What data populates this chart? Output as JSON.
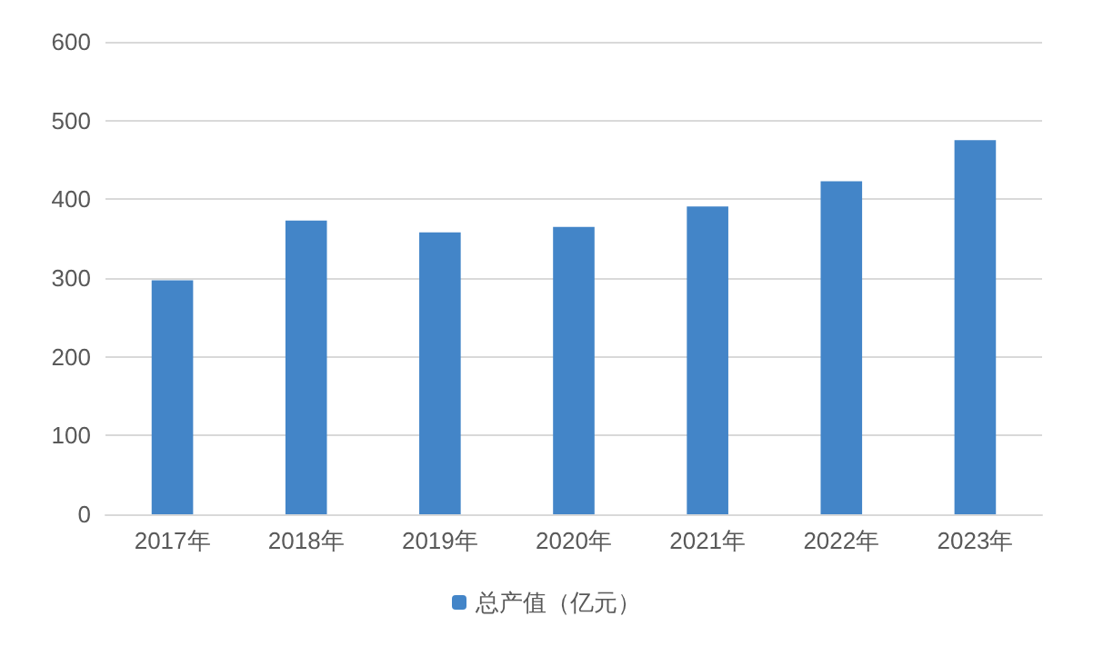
{
  "chart_data": {
    "type": "bar",
    "categories": [
      "2017年",
      "2018年",
      "2019年",
      "2020年",
      "2021年",
      "2022年",
      "2023年"
    ],
    "series": [
      {
        "name": "总产值（亿元）",
        "color": "#4385c8",
        "values": [
          297,
          373,
          358,
          365,
          391,
          423,
          475
        ]
      }
    ],
    "ylim": [
      0,
      600
    ],
    "yticks": [
      0,
      100,
      200,
      300,
      400,
      500,
      600
    ],
    "grid": "y",
    "legend": "bottom"
  }
}
